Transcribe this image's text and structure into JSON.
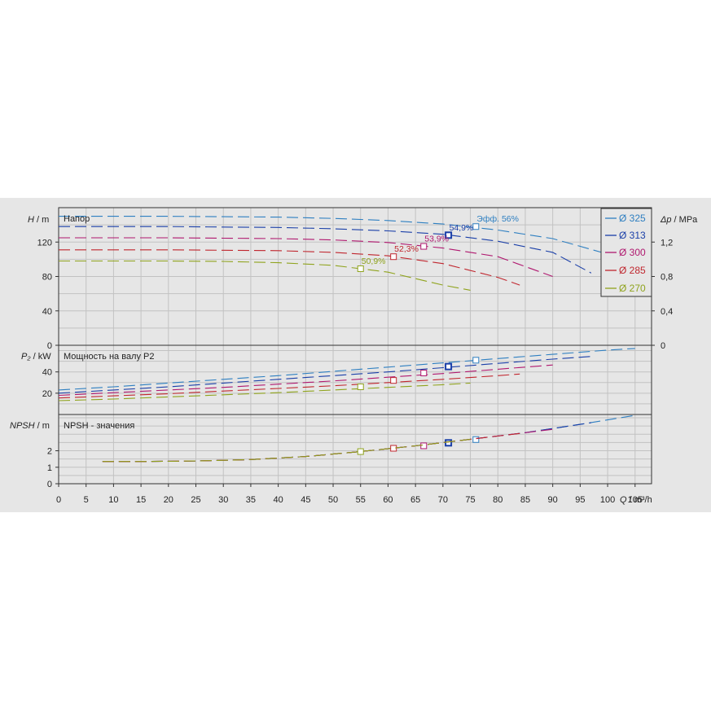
{
  "chart_data": {
    "type": "line",
    "x_axis": {
      "label_symbol": "Q",
      "label_unit": " / m³/h",
      "range": [
        0,
        108
      ],
      "ticks": [
        "0",
        "5",
        "10",
        "15",
        "20",
        "25",
        "30",
        "35",
        "40",
        "45",
        "50",
        "55",
        "60",
        "65",
        "70",
        "75",
        "80",
        "85",
        "90",
        "95",
        "100",
        "105"
      ],
      "tick_values": [
        0,
        5,
        10,
        15,
        20,
        25,
        30,
        35,
        40,
        45,
        50,
        55,
        60,
        65,
        70,
        75,
        80,
        85,
        90,
        95,
        100,
        105
      ]
    },
    "legend": {
      "placement": "top-right",
      "entries": [
        {
          "name": "Ø 325",
          "color": "#2e7fc1"
        },
        {
          "name": "Ø 313",
          "color": "#1a3fa8"
        },
        {
          "name": "Ø 300",
          "color": "#b0186f"
        },
        {
          "name": "Ø 285",
          "color": "#c0262e"
        },
        {
          "name": "Ø 270",
          "color": "#8fa31d"
        }
      ]
    },
    "panels": [
      {
        "id": "head",
        "title": "Напор",
        "ylabel_symbol": "H",
        "ylabel_unit": " / m",
        "y_range": [
          0,
          160
        ],
        "y_ticks": [
          "0",
          "40",
          "80",
          "120"
        ],
        "y_tick_values": [
          0,
          40,
          80,
          120
        ],
        "y2_label_symbol": "Δp",
        "y2_label_unit": " / MPa",
        "y2_ticks": [
          "0",
          "0,4",
          "0,8",
          "1,2"
        ],
        "y2_tick_values": [
          0,
          0.4,
          0.8,
          1.2
        ],
        "series": [
          {
            "name": "Ø 325",
            "color": "#2e7fc1",
            "x": [
              0,
              10,
              20,
              30,
              40,
              50,
              60,
              70,
              80,
              90,
              100,
              106
            ],
            "y": [
              150,
              150,
              150,
              149.5,
              149,
              147.5,
              145,
              141,
              134,
              124,
              106,
              95
            ],
            "duty_point": {
              "x": 76,
              "y": 138
            },
            "annotation": "Эфф.  56%"
          },
          {
            "name": "Ø 313",
            "color": "#1a3fa8",
            "x": [
              0,
              10,
              20,
              30,
              40,
              50,
              60,
              70,
              80,
              90,
              97
            ],
            "y": [
              138,
              138,
              138,
              137.5,
              137,
              135.5,
              133,
              129,
              121,
              108,
              84
            ],
            "duty_point": {
              "x": 71,
              "y": 128
            },
            "annotation": "54,9%"
          },
          {
            "name": "Ø 300",
            "color": "#b0186f",
            "x": [
              0,
              10,
              20,
              30,
              40,
              50,
              60,
              70,
              80,
              90
            ],
            "y": [
              125,
              125,
              125,
              124.5,
              124,
              122.5,
              119.5,
              113,
              103,
              80
            ],
            "duty_point": {
              "x": 66.5,
              "y": 115
            },
            "annotation": "53,9%"
          },
          {
            "name": "Ø 285",
            "color": "#c0262e",
            "x": [
              0,
              10,
              20,
              30,
              40,
              50,
              60,
              70,
              80,
              84
            ],
            "y": [
              111,
              111,
              111,
              110.5,
              110,
              108,
              104,
              95,
              79,
              70
            ],
            "duty_point": {
              "x": 61,
              "y": 103
            },
            "annotation": "52,3%"
          },
          {
            "name": "Ø 270",
            "color": "#8fa31d",
            "x": [
              0,
              10,
              20,
              30,
              40,
              50,
              60,
              70,
              75
            ],
            "y": [
              98,
              98,
              98,
              97.5,
              96,
              93,
              85,
              70,
              64
            ],
            "duty_point": {
              "x": 55,
              "y": 89
            },
            "annotation": "50,9%"
          }
        ]
      },
      {
        "id": "power",
        "title": "Мощность на валу P2",
        "ylabel_symbol": "P₂",
        "ylabel_unit": " / kW",
        "y_range": [
          0,
          65
        ],
        "y_ticks": [
          "20",
          "40"
        ],
        "y_tick_values": [
          20,
          40
        ],
        "series": [
          {
            "name": "Ø 325",
            "color": "#2e7fc1",
            "x": [
              0,
              10,
              20,
              30,
              40,
              50,
              60,
              70,
              80,
              90,
              100,
              105
            ],
            "y": [
              23,
              26,
              29.5,
              33,
              36.5,
              40.5,
              44.5,
              48.5,
              52.5,
              56.5,
              60.5,
              62
            ],
            "duty_point": {
              "x": 76,
              "y": 51
            }
          },
          {
            "name": "Ø 313",
            "color": "#1a3fa8",
            "x": [
              0,
              10,
              20,
              30,
              40,
              50,
              60,
              70,
              80,
              90,
              97
            ],
            "y": [
              20,
              23,
              26,
              29.5,
              33,
              36.5,
              40,
              44,
              48,
              52,
              54.5
            ],
            "duty_point": {
              "x": 71,
              "y": 45
            }
          },
          {
            "name": "Ø 300",
            "color": "#b0186f",
            "x": [
              0,
              10,
              20,
              30,
              40,
              50,
              60,
              70,
              80,
              90
            ],
            "y": [
              18,
              20.5,
              23,
              25.5,
              28.5,
              31.5,
              35,
              38.5,
              42.5,
              46.5
            ],
            "duty_point": {
              "x": 66.5,
              "y": 39
            }
          },
          {
            "name": "Ø 285",
            "color": "#c0262e",
            "x": [
              0,
              10,
              20,
              30,
              40,
              50,
              60,
              70,
              80,
              84
            ],
            "y": [
              15.5,
              17.5,
              19.5,
              22,
              24.5,
              27,
              30,
              33,
              36.5,
              38
            ],
            "duty_point": {
              "x": 61,
              "y": 32
            }
          },
          {
            "name": "Ø 270",
            "color": "#8fa31d",
            "x": [
              0,
              10,
              20,
              30,
              40,
              50,
              60,
              70,
              75
            ],
            "y": [
              13,
              14.5,
              16.5,
              18.5,
              20.5,
              23,
              25.5,
              28,
              29.5
            ],
            "duty_point": {
              "x": 55,
              "y": 26
            }
          }
        ]
      },
      {
        "id": "npsh",
        "title": "NPSH - значения",
        "ylabel_symbol": "NPSH",
        "ylabel_unit": " / m",
        "y_range": [
          0,
          4.2
        ],
        "y_ticks": [
          "0",
          "1",
          "2"
        ],
        "y_tick_values": [
          0,
          1,
          2
        ],
        "series": [
          {
            "name": "Ø 325",
            "color": "#2e7fc1",
            "x": [
              8,
              15,
              25,
              35,
              45,
              55,
              65,
              75,
              85,
              95,
              105
            ],
            "y": [
              1.35,
              1.35,
              1.38,
              1.47,
              1.65,
              1.95,
              2.3,
              2.7,
              3.1,
              3.6,
              4.15
            ],
            "duty_point": {
              "x": 76,
              "y": 2.68
            }
          },
          {
            "name": "Ø 313",
            "color": "#1a3fa8",
            "x": [
              8,
              15,
              25,
              35,
              45,
              55,
              65,
              75,
              85,
              95,
              97
            ],
            "y": [
              1.35,
              1.35,
              1.38,
              1.47,
              1.65,
              1.95,
              2.3,
              2.7,
              3.1,
              3.6,
              3.7
            ],
            "duty_point": {
              "x": 71,
              "y": 2.48
            }
          },
          {
            "name": "Ø 300",
            "color": "#b0186f",
            "x": [
              8,
              15,
              25,
              35,
              45,
              55,
              65,
              75,
              85,
              90
            ],
            "y": [
              1.35,
              1.35,
              1.38,
              1.47,
              1.65,
              1.95,
              2.3,
              2.7,
              3.1,
              3.3
            ],
            "duty_point": {
              "x": 66.5,
              "y": 2.3
            }
          },
          {
            "name": "Ø 285",
            "color": "#c0262e",
            "x": [
              8,
              15,
              25,
              35,
              45,
              55,
              65,
              75,
              84
            ],
            "y": [
              1.35,
              1.35,
              1.38,
              1.47,
              1.65,
              1.95,
              2.3,
              2.7,
              3.05
            ],
            "duty_point": {
              "x": 61,
              "y": 2.15
            }
          },
          {
            "name": "Ø 270",
            "color": "#8fa31d",
            "x": [
              8,
              15,
              25,
              35,
              45,
              55,
              65,
              75
            ],
            "y": [
              1.35,
              1.35,
              1.38,
              1.47,
              1.65,
              1.95,
              2.3,
              2.7
            ],
            "duty_point": {
              "x": 55,
              "y": 1.95
            }
          }
        ]
      }
    ]
  }
}
